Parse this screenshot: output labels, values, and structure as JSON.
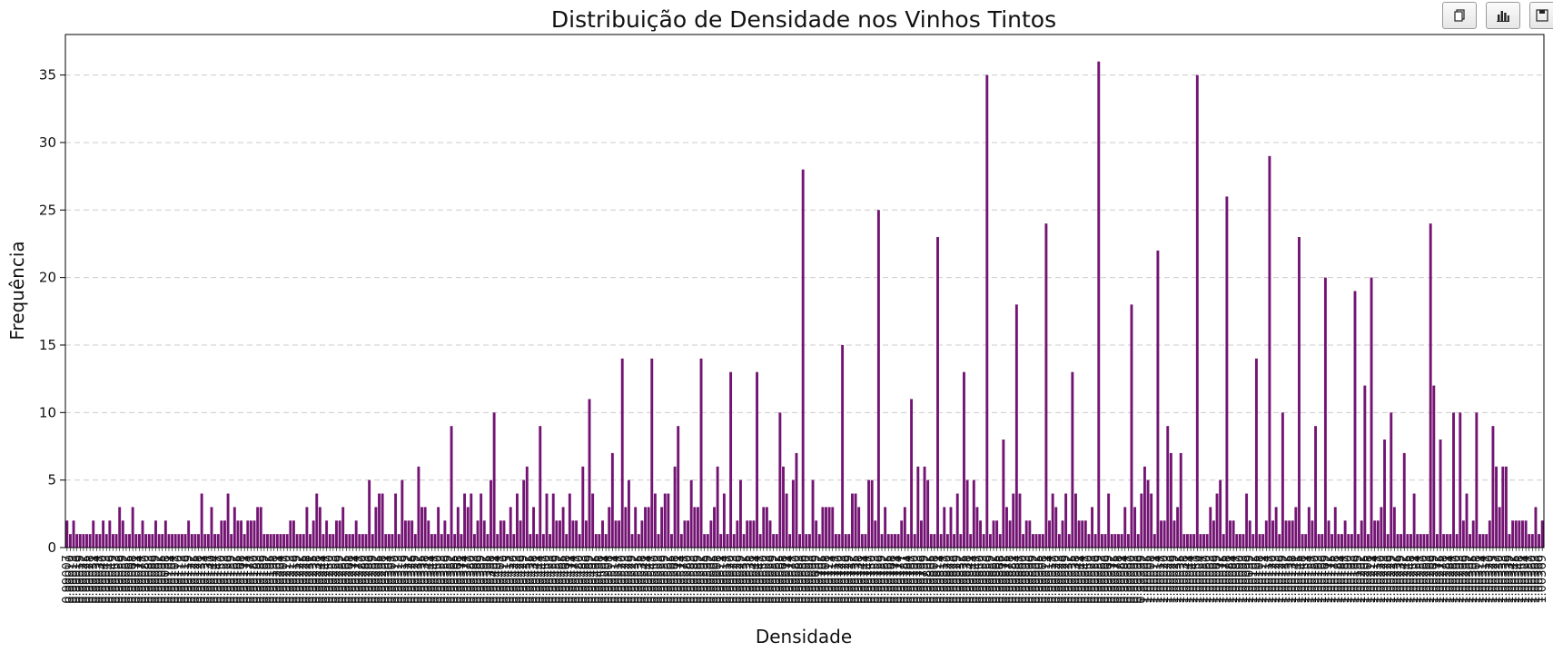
{
  "chart_data": {
    "type": "bar",
    "title": "Distribuição de Densidade nos Vinhos Tintos",
    "xlabel": "Densidade",
    "ylabel": "Frequência",
    "ylim": [
      0,
      38
    ],
    "yticks": [
      0,
      5,
      10,
      15,
      20,
      25,
      30,
      35
    ],
    "grid": "y-dashed",
    "bar_color": "#731473",
    "x_range": [
      0.99007,
      1.00369
    ],
    "values": [
      2,
      1,
      2,
      1,
      1,
      1,
      1,
      1,
      2,
      1,
      1,
      2,
      1,
      2,
      1,
      1,
      3,
      2,
      1,
      1,
      3,
      1,
      1,
      2,
      1,
      1,
      1,
      2,
      1,
      1,
      2,
      1,
      1,
      1,
      1,
      1,
      1,
      2,
      1,
      1,
      1,
      4,
      1,
      1,
      3,
      1,
      1,
      2,
      2,
      4,
      1,
      3,
      2,
      2,
      1,
      2,
      2,
      2,
      3,
      3,
      1,
      1,
      1,
      1,
      1,
      1,
      1,
      1,
      2,
      2,
      1,
      1,
      1,
      3,
      1,
      2,
      4,
      3,
      1,
      2,
      1,
      1,
      2,
      2,
      3,
      1,
      1,
      1,
      2,
      1,
      1,
      1,
      5,
      1,
      3,
      4,
      4,
      1,
      1,
      1,
      4,
      1,
      5,
      2,
      2,
      2,
      1,
      6,
      3,
      3,
      2,
      1,
      1,
      3,
      1,
      2,
      1,
      9,
      1,
      3,
      1,
      4,
      3,
      4,
      1,
      2,
      4,
      2,
      1,
      5,
      10,
      1,
      2,
      2,
      1,
      3,
      1,
      4,
      2,
      5,
      6,
      1,
      3,
      1,
      9,
      1,
      4,
      1,
      4,
      2,
      2,
      3,
      1,
      4,
      2,
      2,
      1,
      6,
      2,
      11,
      4,
      1,
      1,
      2,
      1,
      3,
      7,
      2,
      2,
      14,
      3,
      5,
      1,
      3,
      1,
      2,
      3,
      3,
      14,
      4,
      1,
      3,
      4,
      4,
      1,
      6,
      9,
      1,
      2,
      2,
      5,
      3,
      3,
      14,
      1,
      1,
      2,
      3,
      6,
      1,
      4,
      1,
      13,
      1,
      2,
      5,
      1,
      2,
      2,
      2,
      13,
      1,
      3,
      3,
      2,
      1,
      1,
      10,
      6,
      4,
      1,
      5,
      7,
      1,
      28,
      1,
      1,
      5,
      2,
      1,
      3,
      3,
      3,
      3,
      1,
      1,
      15,
      1,
      1,
      4,
      4,
      3,
      1,
      1,
      5,
      5,
      2,
      25,
      1,
      3,
      1,
      1,
      1,
      1,
      2,
      3,
      1,
      11,
      1,
      6,
      2,
      6,
      5,
      1,
      1,
      23,
      1,
      3,
      1,
      3,
      1,
      4,
      1,
      13,
      5,
      1,
      5,
      3,
      2,
      1,
      35,
      1,
      2,
      2,
      1,
      8,
      3,
      2,
      4,
      18,
      4,
      1,
      2,
      2,
      1,
      1,
      1,
      1,
      24,
      2,
      4,
      3,
      1,
      2,
      4,
      1,
      13,
      4,
      2,
      2,
      2,
      1,
      3,
      1,
      36,
      1,
      1,
      4,
      1,
      1,
      1,
      1,
      3,
      1,
      18,
      3,
      1,
      4,
      6,
      5,
      4,
      1,
      22,
      2,
      2,
      9,
      7,
      2,
      3,
      7,
      1,
      1,
      1,
      1,
      35,
      1,
      1,
      1,
      3,
      2,
      4,
      5,
      1,
      26,
      2,
      2,
      1,
      1,
      1,
      4,
      2,
      1,
      14,
      1,
      1,
      2,
      29,
      2,
      3,
      1,
      10,
      2,
      2,
      2,
      3,
      23,
      1,
      1,
      3,
      2,
      9,
      1,
      1,
      20,
      2,
      1,
      3,
      1,
      1,
      2,
      1,
      1,
      19,
      1,
      2,
      12,
      1,
      20,
      2,
      2,
      3,
      8,
      1,
      10,
      3,
      1,
      1,
      7,
      1,
      1,
      4,
      1,
      1,
      1,
      1,
      24,
      12,
      1,
      8,
      1,
      1,
      1,
      10,
      1,
      10,
      2,
      4,
      1,
      2,
      10,
      1,
      1,
      1,
      2,
      9,
      6,
      3,
      6,
      6,
      1,
      2,
      2,
      2,
      2,
      2,
      1,
      1,
      3,
      1,
      2
    ]
  },
  "toolbar": {
    "copy_icon": "copy-icon",
    "chart_icon": "bar-chart-icon",
    "save_icon": "save-icon"
  }
}
